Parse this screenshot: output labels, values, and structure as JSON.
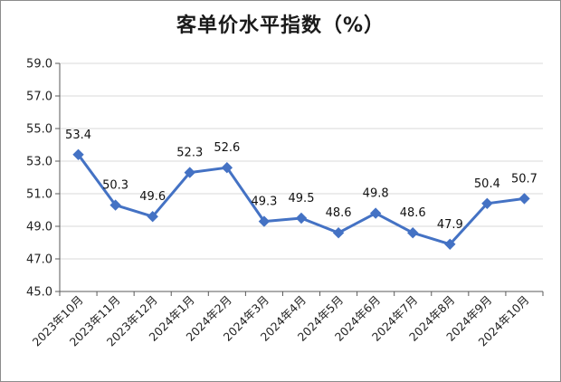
{
  "chart_data": {
    "type": "line",
    "title": "客单价水平指数（%）",
    "categories": [
      "2023年10月",
      "2023年11月",
      "2023年12月",
      "2024年1月",
      "2024年2月",
      "2024年3月",
      "2024年4月",
      "2024年5月",
      "2024年6月",
      "2024年7月",
      "2024年8月",
      "2024年9月",
      "2024年10月"
    ],
    "series": [
      {
        "values": [
          53.4,
          50.3,
          49.6,
          52.3,
          52.6,
          49.3,
          49.5,
          48.6,
          49.8,
          48.6,
          47.9,
          50.4,
          50.7
        ]
      }
    ],
    "data_labels": [
      "53.4",
      "50.3",
      "49.6",
      "52.3",
      "52.6",
      "49.3",
      "49.5",
      "48.6",
      "49.8",
      "48.6",
      "47.9",
      "50.4",
      "50.7"
    ],
    "yticks": [
      "45.0",
      "47.0",
      "49.0",
      "51.0",
      "53.0",
      "55.0",
      "57.0",
      "59.0"
    ],
    "ylim": [
      45,
      59
    ],
    "grid": true,
    "legend": "none",
    "line_color": "#4472c4",
    "marker": "diamond"
  }
}
